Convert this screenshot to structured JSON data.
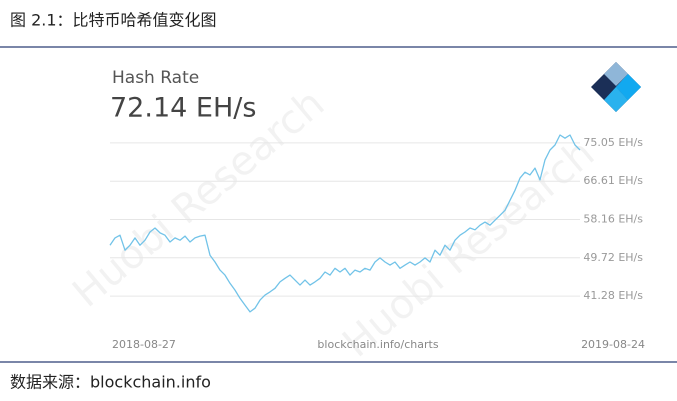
{
  "caption": "图 2.1：比特币哈希值变化图",
  "source": "数据来源：blockchain.info",
  "watermark": "Huobi Research",
  "chart_data": {
    "type": "line",
    "title": "Hash Rate",
    "subtitle": "72.14 EH/s",
    "footer": "blockchain.info/charts",
    "color": "#72c3e8",
    "grid": true,
    "ylim": [
      33.8,
      77.9
    ],
    "yticks": [
      {
        "value": 75.05,
        "label": "75.05 EH/s"
      },
      {
        "value": 66.61,
        "label": "66.61 EH/s"
      },
      {
        "value": 58.16,
        "label": "58.16 EH/s"
      },
      {
        "value": 49.72,
        "label": "49.72 EH/s"
      },
      {
        "value": 41.28,
        "label": "41.28 EH/s"
      }
    ],
    "categories": [
      "2018-08-27",
      null,
      null,
      null,
      null,
      null,
      null,
      null,
      null,
      null,
      null,
      null,
      null,
      null,
      null,
      null,
      null,
      null,
      null,
      null,
      null,
      null,
      null,
      null,
      null,
      null,
      null,
      null,
      null,
      null,
      null,
      null,
      null,
      null,
      null,
      null,
      null,
      null,
      null,
      null,
      null,
      null,
      null,
      null,
      null,
      null,
      null,
      null,
      null,
      null,
      null,
      null,
      null,
      null,
      null,
      null,
      null,
      null,
      null,
      null,
      null,
      null,
      null,
      null,
      null,
      null,
      null,
      null,
      null,
      null,
      null,
      null,
      null,
      null,
      null,
      null,
      null,
      null,
      null,
      null,
      null,
      null,
      null,
      null,
      null,
      null,
      null,
      null,
      null,
      null,
      null,
      null,
      null,
      null,
      "2019-08-24"
    ],
    "values": [
      52.5,
      54.1,
      54.7,
      51.4,
      52.5,
      54.1,
      52.5,
      53.6,
      55.4,
      56.3,
      55.2,
      54.7,
      53.2,
      54.1,
      53.6,
      54.5,
      53.2,
      54.1,
      54.5,
      54.7,
      50.3,
      48.8,
      47.0,
      45.9,
      44.1,
      42.6,
      40.8,
      39.3,
      37.8,
      38.6,
      40.4,
      41.5,
      42.2,
      43.0,
      44.4,
      45.2,
      45.9,
      44.8,
      43.7,
      44.8,
      43.7,
      44.4,
      45.2,
      46.6,
      45.9,
      47.4,
      46.6,
      47.4,
      45.9,
      47.0,
      46.6,
      47.4,
      47.0,
      48.8,
      49.7,
      48.8,
      48.1,
      48.8,
      47.4,
      48.1,
      48.8,
      48.1,
      48.8,
      49.7,
      48.8,
      51.4,
      50.3,
      52.5,
      51.4,
      53.6,
      54.7,
      55.4,
      56.3,
      55.9,
      56.9,
      57.6,
      56.9,
      58.0,
      59.1,
      60.2,
      62.4,
      64.6,
      67.3,
      68.6,
      68.0,
      69.5,
      66.9,
      71.3,
      73.5,
      74.6,
      76.8,
      76.1,
      76.8,
      74.6,
      73.5
    ]
  }
}
